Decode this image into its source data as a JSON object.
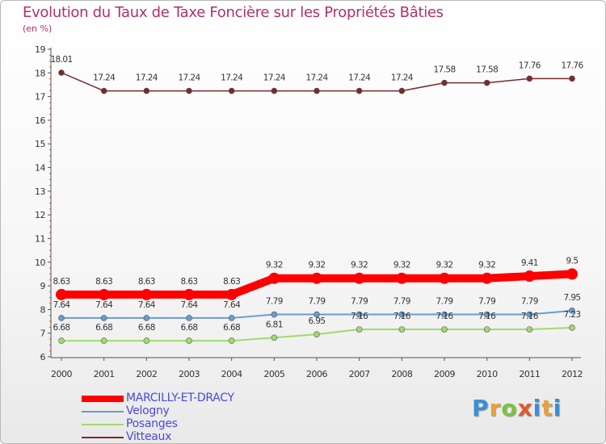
{
  "chart_data": {
    "type": "line",
    "title": "Evolution du Taux de Taxe Foncière sur les Propriétés Bâties",
    "ylabel": "(en %)",
    "xlabel": "",
    "ylim": [
      6,
      19
    ],
    "yticks": [
      "6",
      "7",
      "8",
      "9",
      "10",
      "11",
      "12",
      "13",
      "14",
      "15",
      "16",
      "17",
      "18",
      "19"
    ],
    "categories": [
      "2000",
      "2001",
      "2002",
      "2003",
      "2004",
      "2005",
      "2006",
      "2007",
      "2008",
      "2009",
      "2010",
      "2011",
      "2012"
    ],
    "series": [
      {
        "name": "MARCILLY-ET-DRACY",
        "color": "#ff0000",
        "values": [
          8.63,
          8.63,
          8.63,
          8.63,
          8.63,
          9.32,
          9.32,
          9.32,
          9.32,
          9.32,
          9.32,
          9.41,
          9.5
        ],
        "labels": [
          "8.63",
          "8.63",
          "8.63",
          "8.63",
          "8.63",
          "9.32",
          "9.32",
          "9.32",
          "9.32",
          "9.32",
          "9.32",
          "9.41",
          "9.5"
        ]
      },
      {
        "name": "Velogny",
        "color": "#6a9ccf",
        "values": [
          7.64,
          7.64,
          7.64,
          7.64,
          7.64,
          7.79,
          7.79,
          7.79,
          7.79,
          7.79,
          7.79,
          7.79,
          7.95
        ],
        "labels": [
          "7.64",
          "7.64",
          "7.64",
          "7.64",
          "7.64",
          "7.79",
          "7.79",
          "7.79",
          "7.79",
          "7.79",
          "7.79",
          "7.79",
          "7.95"
        ]
      },
      {
        "name": "Posanges",
        "color": "#9fdb6a",
        "values": [
          6.68,
          6.68,
          6.68,
          6.68,
          6.68,
          6.81,
          6.95,
          7.16,
          7.16,
          7.16,
          7.16,
          7.16,
          7.23
        ],
        "labels": [
          "6.68",
          "6.68",
          "6.68",
          "6.68",
          "6.68",
          "6.81",
          "6.95",
          "7.16",
          "7.16",
          "7.16",
          "7.16",
          "7.16",
          "7.23"
        ]
      },
      {
        "name": "Vitteaux",
        "color": "#7a2a2a",
        "values": [
          18.01,
          17.24,
          17.24,
          17.24,
          17.24,
          17.24,
          17.24,
          17.24,
          17.24,
          17.58,
          17.58,
          17.76,
          17.76
        ],
        "labels": [
          "18.01",
          "17.24",
          "17.24",
          "17.24",
          "17.24",
          "17.24",
          "17.24",
          "17.24",
          "17.24",
          "17.58",
          "17.58",
          "17.76",
          "17.76"
        ]
      }
    ],
    "legend_position": "bottom-left"
  },
  "brand": {
    "letters": [
      "P",
      "r",
      "o",
      "x",
      "i",
      "t",
      "i"
    ]
  }
}
